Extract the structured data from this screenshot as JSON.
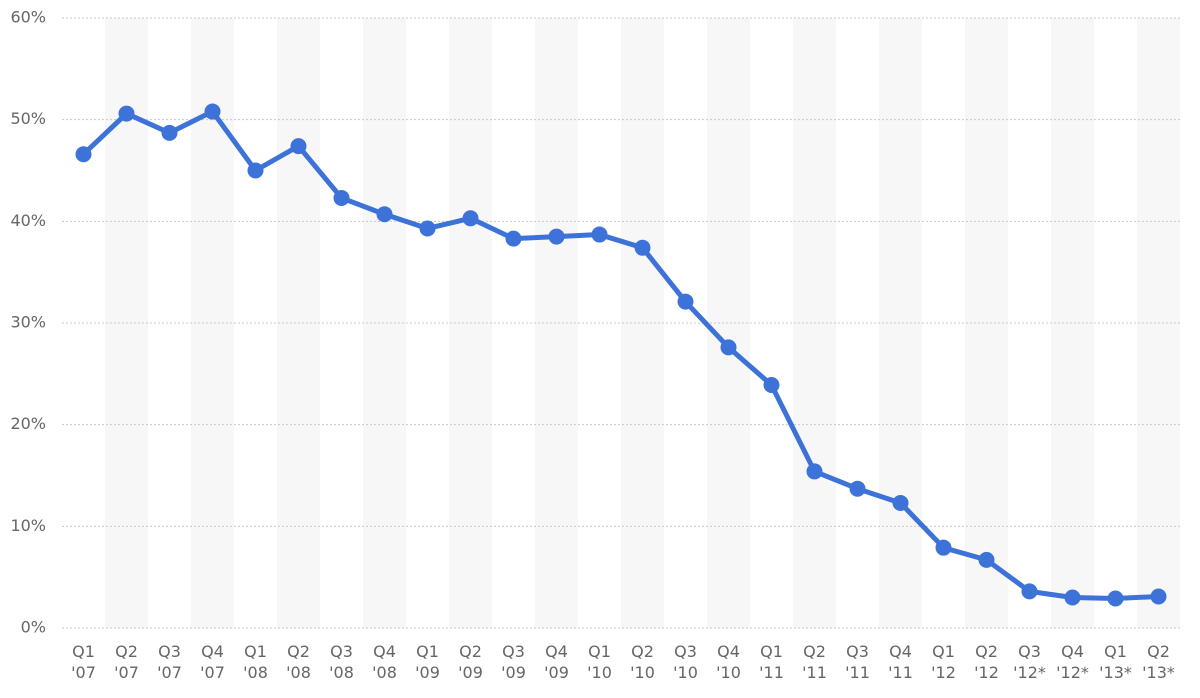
{
  "chart_data": {
    "type": "line",
    "categories": [
      "Q1 '07",
      "Q2 '07",
      "Q3 '07",
      "Q4 '07",
      "Q1 '08",
      "Q2 '08",
      "Q3 '08",
      "Q4 '08",
      "Q1 '09",
      "Q2 '09",
      "Q3 '09",
      "Q4 '09",
      "Q1 '10",
      "Q2 '10",
      "Q3 '10",
      "Q4 '10",
      "Q1 '11",
      "Q2 '11",
      "Q3 '11",
      "Q4 '11",
      "Q1 '12",
      "Q2 '12",
      "Q3 '12*",
      "Q4 '12*",
      "Q1 '13*",
      "Q2 '13*"
    ],
    "values": [
      46.6,
      50.6,
      48.7,
      50.8,
      45.0,
      47.4,
      42.3,
      40.7,
      39.3,
      40.3,
      38.3,
      38.5,
      38.7,
      37.4,
      32.1,
      27.6,
      23.9,
      15.4,
      13.7,
      12.3,
      7.9,
      6.7,
      3.6,
      3.0,
      2.9,
      3.1
    ],
    "color": "#3d72d9",
    "ylim": [
      0,
      60
    ],
    "yticks": [
      {
        "value": 0,
        "label": "0%"
      },
      {
        "value": 10,
        "label": "10%"
      },
      {
        "value": 20,
        "label": "20%"
      },
      {
        "value": 30,
        "label": "30%"
      },
      {
        "value": 40,
        "label": "40%"
      },
      {
        "value": 50,
        "label": "50%"
      },
      {
        "value": 60,
        "label": "60%"
      }
    ],
    "grid": true
  }
}
